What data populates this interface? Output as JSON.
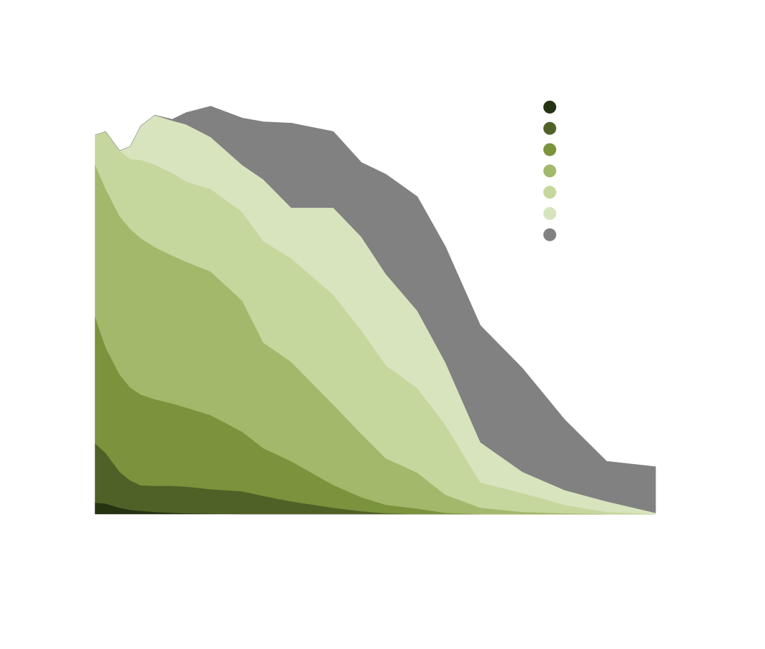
{
  "chart_data": {
    "type": "area",
    "stacked": true,
    "title": "",
    "xlabel": "",
    "ylabel": "",
    "x": [
      0,
      1.5,
      3.5,
      5,
      6.5,
      8.5,
      11,
      13,
      16.5,
      21,
      24,
      28,
      34,
      38,
      41.5,
      46,
      50,
      55,
      61,
      67,
      73,
      80
    ],
    "xlim": [
      0,
      80
    ],
    "ylim": [
      0,
      100
    ],
    "grid": false,
    "legend": {
      "position": "top-right"
    },
    "series": [
      {
        "name": "",
        "color": "#253312",
        "values": [
          2.7,
          2.5,
          1.5,
          1.0,
          0.8,
          0.5,
          0.3,
          0.2,
          0.1,
          0,
          0,
          0,
          0,
          0,
          0,
          0,
          0,
          0,
          0,
          0,
          0,
          0
        ]
      },
      {
        "name": "",
        "color": "#506127",
        "values": [
          14.0,
          12.0,
          8.5,
          7.0,
          6.0,
          6.2,
          6.4,
          6.3,
          5.8,
          5.4,
          4.3,
          3.0,
          1.5,
          0.7,
          0.2,
          0,
          0,
          0,
          0,
          0,
          0,
          0
        ]
      },
      {
        "name": "",
        "color": "#7a933c",
        "values": [
          30.0,
          25.0,
          23.0,
          22.0,
          21.5,
          20.5,
          19.5,
          18.7,
          17.5,
          14.1,
          11.3,
          9.5,
          5.4,
          3.3,
          2.0,
          1.3,
          0.3,
          0,
          0,
          0,
          0,
          0
        ]
      },
      {
        "name": "",
        "color": "#a3b86b",
        "values": [
          36.0,
          37.5,
          37.5,
          37.5,
          37.0,
          36.0,
          35.0,
          34.5,
          34.0,
          31.0,
          25.0,
          23.5,
          19.0,
          15.0,
          11.0,
          8.5,
          4.3,
          1.5,
          0.5,
          0.2,
          0,
          0
        ]
      },
      {
        "name": "",
        "color": "#c5d79d",
        "values": [
          7.0,
          13.5,
          15.5,
          16.5,
          18.5,
          19.5,
          19.5,
          19.0,
          19.5,
          21.0,
          24.0,
          24.5,
          26.0,
          24.5,
          22.0,
          20.0,
          16.5,
          6.0,
          4.5,
          2.0,
          0.5,
          0
        ]
      },
      {
        "name": "",
        "color": "#d8e4be",
        "values": [
          0,
          0,
          0,
          3.0,
          8.0,
          11.7,
          12.4,
          13.5,
          12.3,
          11.1,
          14.6,
          12.0,
          20.6,
          22.1,
          21.6,
          18.3,
          14.8,
          9.5,
          5.0,
          3.5,
          2.5,
          0.3
        ]
      },
      {
        "name": "",
        "color": "#818181",
        "values": [
          0,
          0,
          0,
          0,
          0,
          0,
          0.3,
          2.8,
          7.3,
          11.1,
          13.6,
          20.0,
          18.0,
          17.6,
          23.6,
          27.0,
          27.4,
          27.6,
          24.5,
          16.7,
          9.5,
          10.9
        ]
      }
    ]
  }
}
